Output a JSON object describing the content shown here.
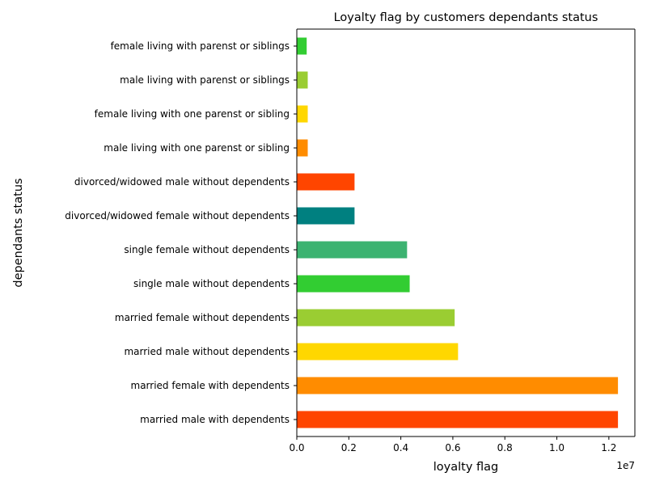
{
  "chart_data": {
    "type": "bar",
    "orientation": "horizontal",
    "title": "Loyalty flag by customers dependants status",
    "xlabel": "loyalty flag",
    "ylabel": "dependants status",
    "x_offset_label": "1e7",
    "xlim": [
      0,
      1.3
    ],
    "x_ticks": [
      0.0,
      0.2,
      0.4,
      0.6,
      0.8,
      1.0,
      1.2
    ],
    "x_tick_labels": [
      "0.0",
      "0.2",
      "0.4",
      "0.6",
      "0.8",
      "1.0",
      "1.2"
    ],
    "grid": false,
    "legend": "none",
    "categories": [
      "married male with dependents",
      "married female with dependents",
      "married male without dependents",
      "married female without dependents",
      "single male without dependents",
      "single female without dependents",
      "divorced/widowed female without dependents",
      "divorced/widowed male without dependents",
      "male living with one parenst or sibling",
      "female living with one parenst or sibling",
      "male living with parenst or siblings",
      "female living with parenst or siblings"
    ],
    "values": [
      1.235,
      1.235,
      0.62,
      0.607,
      0.434,
      0.424,
      0.222,
      0.222,
      0.042,
      0.042,
      0.042,
      0.038
    ],
    "colors": [
      "#ff4500",
      "#ff8c00",
      "#ffd700",
      "#9acd32",
      "#32cd32",
      "#3cb371",
      "#008080",
      "#ff4500",
      "#ff8c00",
      "#ffd700",
      "#9acd32",
      "#32cd32"
    ]
  }
}
